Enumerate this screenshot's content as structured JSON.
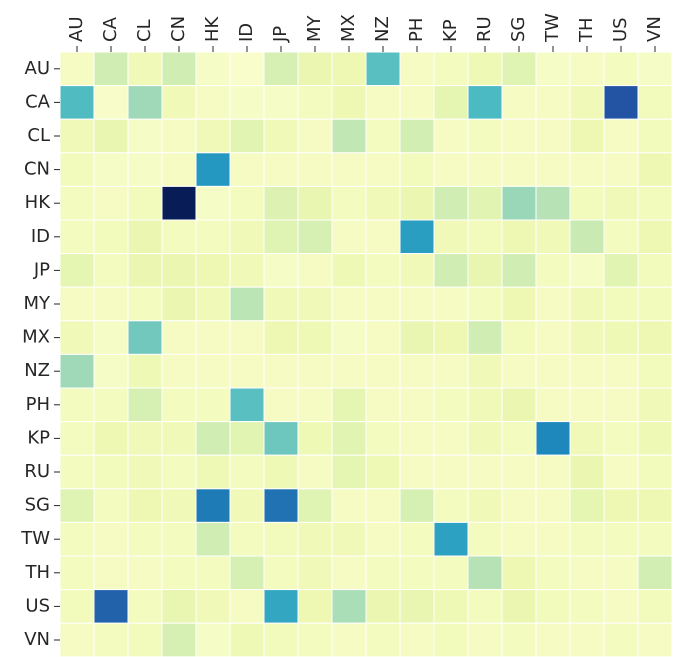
{
  "chart_data": {
    "type": "heatmap",
    "title": "",
    "xlabel": "",
    "ylabel": "",
    "x_categories": [
      "AU",
      "CA",
      "CL",
      "CN",
      "HK",
      "ID",
      "JP",
      "MY",
      "MX",
      "NZ",
      "PH",
      "KP",
      "RU",
      "SG",
      "TW",
      "TH",
      "US",
      "VN"
    ],
    "y_categories": [
      "AU",
      "CA",
      "CL",
      "CN",
      "HK",
      "ID",
      "JP",
      "MY",
      "MX",
      "NZ",
      "PH",
      "KP",
      "RU",
      "SG",
      "TW",
      "TH",
      "US",
      "VN"
    ],
    "colormap": "YlGnBu",
    "value_range": [
      0,
      1
    ],
    "colorbar": false,
    "cell_border_color": "#ffffff",
    "values": [
      [
        0.07,
        0.22,
        0.1,
        0.22,
        0.06,
        0.04,
        0.2,
        0.13,
        0.12,
        0.45,
        0.07,
        0.08,
        0.11,
        0.17,
        0.06,
        0.07,
        0.08,
        0.06
      ],
      [
        0.47,
        0.05,
        0.32,
        0.1,
        0.07,
        0.06,
        0.06,
        0.08,
        0.12,
        0.07,
        0.07,
        0.15,
        0.48,
        0.07,
        0.07,
        0.1,
        0.78,
        0.09
      ],
      [
        0.1,
        0.14,
        0.06,
        0.07,
        0.1,
        0.16,
        0.1,
        0.07,
        0.26,
        0.08,
        0.21,
        0.07,
        0.08,
        0.07,
        0.07,
        0.12,
        0.07,
        0.09
      ],
      [
        0.09,
        0.06,
        0.06,
        0.07,
        0.6,
        0.07,
        0.07,
        0.07,
        0.07,
        0.07,
        0.09,
        0.07,
        0.07,
        0.07,
        0.07,
        0.07,
        0.07,
        0.12
      ],
      [
        0.08,
        0.07,
        0.09,
        1.0,
        0.06,
        0.08,
        0.18,
        0.14,
        0.08,
        0.1,
        0.13,
        0.22,
        0.16,
        0.33,
        0.28,
        0.09,
        0.1,
        0.09
      ],
      [
        0.08,
        0.09,
        0.13,
        0.08,
        0.08,
        0.1,
        0.17,
        0.2,
        0.07,
        0.07,
        0.58,
        0.1,
        0.09,
        0.12,
        0.1,
        0.24,
        0.08,
        0.12
      ],
      [
        0.15,
        0.08,
        0.13,
        0.13,
        0.12,
        0.1,
        0.06,
        0.07,
        0.11,
        0.08,
        0.1,
        0.22,
        0.14,
        0.22,
        0.08,
        0.06,
        0.16,
        0.09
      ],
      [
        0.07,
        0.07,
        0.08,
        0.13,
        0.1,
        0.27,
        0.1,
        0.1,
        0.07,
        0.07,
        0.07,
        0.07,
        0.08,
        0.12,
        0.07,
        0.1,
        0.09,
        0.09
      ],
      [
        0.1,
        0.06,
        0.4,
        0.07,
        0.07,
        0.07,
        0.12,
        0.11,
        0.06,
        0.07,
        0.14,
        0.12,
        0.22,
        0.09,
        0.07,
        0.1,
        0.11,
        0.12
      ],
      [
        0.32,
        0.06,
        0.11,
        0.07,
        0.07,
        0.07,
        0.07,
        0.07,
        0.07,
        0.07,
        0.07,
        0.07,
        0.1,
        0.07,
        0.07,
        0.07,
        0.07,
        0.09
      ],
      [
        0.08,
        0.08,
        0.2,
        0.08,
        0.08,
        0.45,
        0.07,
        0.07,
        0.15,
        0.07,
        0.07,
        0.08,
        0.1,
        0.13,
        0.07,
        0.07,
        0.07,
        0.1
      ],
      [
        0.08,
        0.12,
        0.1,
        0.1,
        0.22,
        0.16,
        0.41,
        0.11,
        0.16,
        0.08,
        0.07,
        0.07,
        0.1,
        0.08,
        0.65,
        0.1,
        0.08,
        0.11
      ],
      [
        0.08,
        0.09,
        0.1,
        0.08,
        0.11,
        0.08,
        0.11,
        0.07,
        0.15,
        0.11,
        0.07,
        0.07,
        0.07,
        0.07,
        0.07,
        0.13,
        0.07,
        0.09
      ],
      [
        0.17,
        0.08,
        0.12,
        0.1,
        0.68,
        0.1,
        0.7,
        0.17,
        0.07,
        0.07,
        0.2,
        0.08,
        0.1,
        0.07,
        0.07,
        0.15,
        0.12,
        0.12
      ],
      [
        0.08,
        0.07,
        0.08,
        0.08,
        0.22,
        0.08,
        0.09,
        0.1,
        0.1,
        0.07,
        0.08,
        0.57,
        0.08,
        0.07,
        0.07,
        0.08,
        0.08,
        0.08
      ],
      [
        0.08,
        0.07,
        0.07,
        0.08,
        0.08,
        0.2,
        0.08,
        0.1,
        0.07,
        0.08,
        0.08,
        0.08,
        0.28,
        0.12,
        0.08,
        0.07,
        0.07,
        0.21
      ],
      [
        0.09,
        0.74,
        0.08,
        0.14,
        0.1,
        0.07,
        0.55,
        0.12,
        0.3,
        0.13,
        0.14,
        0.11,
        0.08,
        0.13,
        0.09,
        0.08,
        0.07,
        0.09
      ],
      [
        0.07,
        0.08,
        0.09,
        0.2,
        0.06,
        0.11,
        0.09,
        0.08,
        0.07,
        0.08,
        0.07,
        0.09,
        0.07,
        0.08,
        0.07,
        0.07,
        0.08,
        0.07
      ]
    ]
  }
}
